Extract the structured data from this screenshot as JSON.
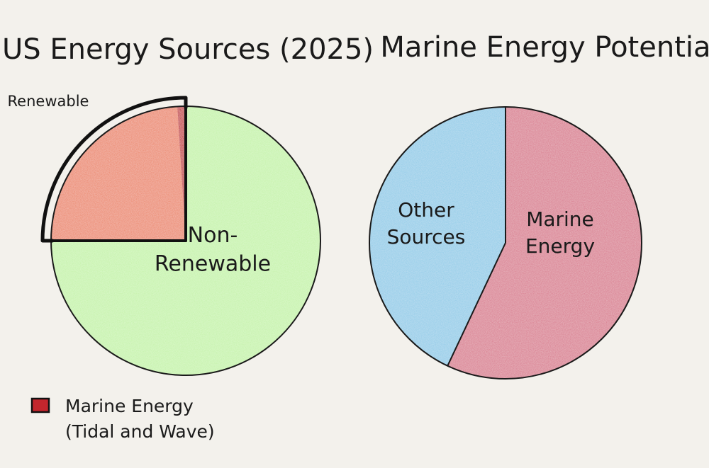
{
  "chart_data": [
    {
      "type": "pie",
      "title": "US Energy Sources (2025)",
      "categories": [
        "Renewable",
        "Marine Energy (Tidal and Wave)",
        "Non-Renewable"
      ],
      "values": [
        24,
        1,
        75
      ],
      "colors": [
        "#ec8466",
        "#c3262d",
        "#c4f3a8"
      ],
      "slice_labels": [
        "",
        "",
        "Non-\nRenewable"
      ],
      "bracket_label": "Renewable",
      "legend": [
        {
          "label": "Marine Energy\n(Tidal and Wave)",
          "color": "#c3262d"
        }
      ],
      "legend_position": "bottom-left"
    },
    {
      "type": "pie",
      "title": "Marine Energy Potential",
      "categories": [
        "Other Sources",
        "Marine Energy"
      ],
      "values": [
        43,
        57
      ],
      "colors": [
        "#8ecbe8",
        "#d9788c"
      ],
      "slice_labels": [
        "Other\nSources",
        "Marine\nEnergy"
      ]
    }
  ]
}
